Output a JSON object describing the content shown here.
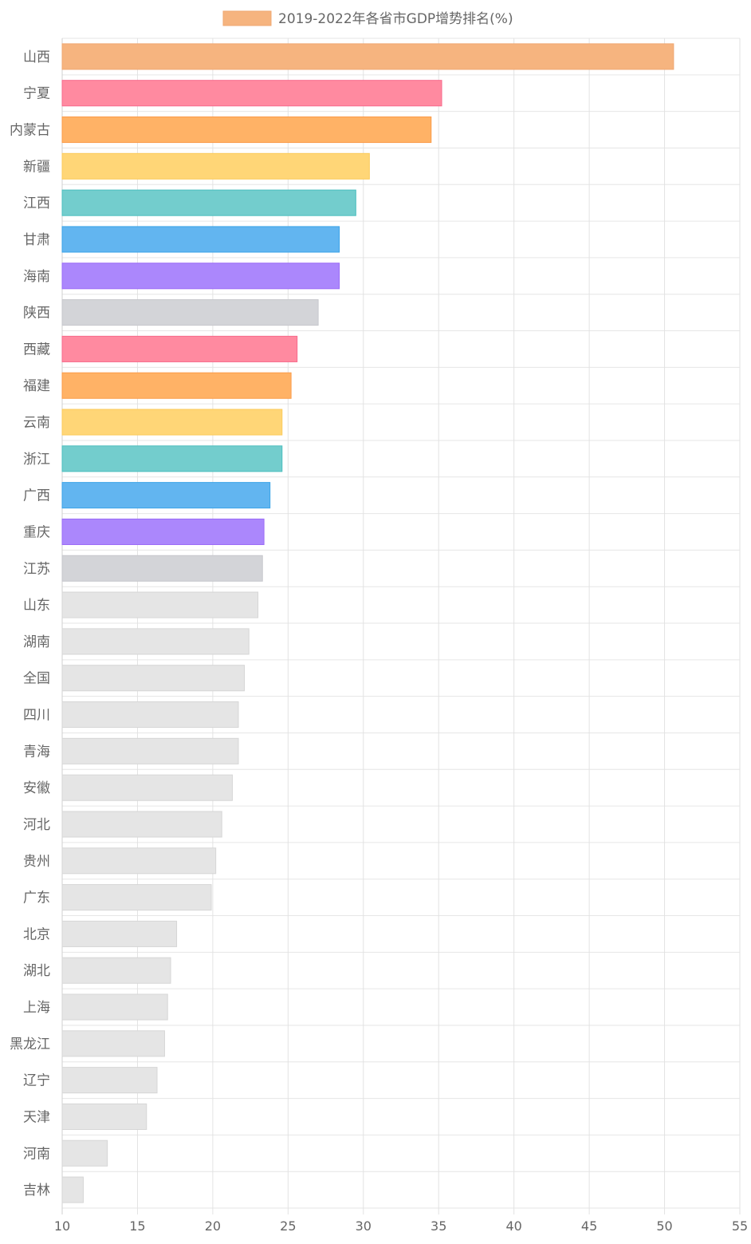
{
  "chart_data": {
    "type": "bar",
    "orientation": "horizontal",
    "legend": {
      "label": "2019-2022年各省市GDP增势排名(%)",
      "color": "#f6b47f",
      "placement": "top-center"
    },
    "categories": [
      "山西",
      "宁夏",
      "内蒙古",
      "新疆",
      "江西",
      "甘肃",
      "海南",
      "陕西",
      "西藏",
      "福建",
      "云南",
      "浙江",
      "广西",
      "重庆",
      "江苏",
      "山东",
      "湖南",
      "全国",
      "四川",
      "青海",
      "安徽",
      "河北",
      "贵州",
      "广东",
      "北京",
      "湖北",
      "上海",
      "黑龙江",
      "辽宁",
      "天津",
      "河南",
      "吉林"
    ],
    "values": [
      50.6,
      35.2,
      34.5,
      30.4,
      29.5,
      28.4,
      28.4,
      27.0,
      25.6,
      25.2,
      24.6,
      24.6,
      23.8,
      23.4,
      23.3,
      23.0,
      22.4,
      22.1,
      21.7,
      21.7,
      21.3,
      20.6,
      20.2,
      19.9,
      17.6,
      17.2,
      17.0,
      16.8,
      16.3,
      15.6,
      13.0,
      11.4
    ],
    "colors": [
      "#f6b47f",
      "#ff8aa0",
      "#ffb266",
      "#ffd677",
      "#73cdcd",
      "#62b5f0",
      "#ab87fc",
      "#d3d4d8",
      "#ff8aa0",
      "#ffb266",
      "#ffd677",
      "#73cdcd",
      "#62b5f0",
      "#ab87fc",
      "#d3d4d8",
      "#e5e5e5",
      "#e5e5e5",
      "#e5e5e5",
      "#e5e5e5",
      "#e5e5e5",
      "#e5e5e5",
      "#e5e5e5",
      "#e5e5e5",
      "#e5e5e5",
      "#e5e5e5",
      "#e5e5e5",
      "#e5e5e5",
      "#e5e5e5",
      "#e5e5e5",
      "#e5e5e5",
      "#e5e5e5",
      "#e5e5e5"
    ],
    "borderColors": [
      "#efa772",
      "#f76a8c",
      "#fb9b48",
      "#fbcb5c",
      "#4cbfbf",
      "#3aa3e8",
      "#9b6cf7",
      "#c6c7cc",
      "#f76a8c",
      "#fb9b48",
      "#fbcb5c",
      "#4cbfbf",
      "#3aa3e8",
      "#9b6cf7",
      "#c6c7cc",
      "#d6d6d6",
      "#d6d6d6",
      "#d6d6d6",
      "#d6d6d6",
      "#d6d6d6",
      "#d6d6d6",
      "#d6d6d6",
      "#d6d6d6",
      "#d6d6d6",
      "#d6d6d6",
      "#d6d6d6",
      "#d6d6d6",
      "#d6d6d6",
      "#d6d6d6",
      "#d6d6d6",
      "#d6d6d6",
      "#d6d6d6"
    ],
    "xlim": [
      10,
      55
    ],
    "xticks": [
      10,
      15,
      20,
      25,
      30,
      35,
      40,
      45,
      50,
      55
    ],
    "grid": true
  }
}
